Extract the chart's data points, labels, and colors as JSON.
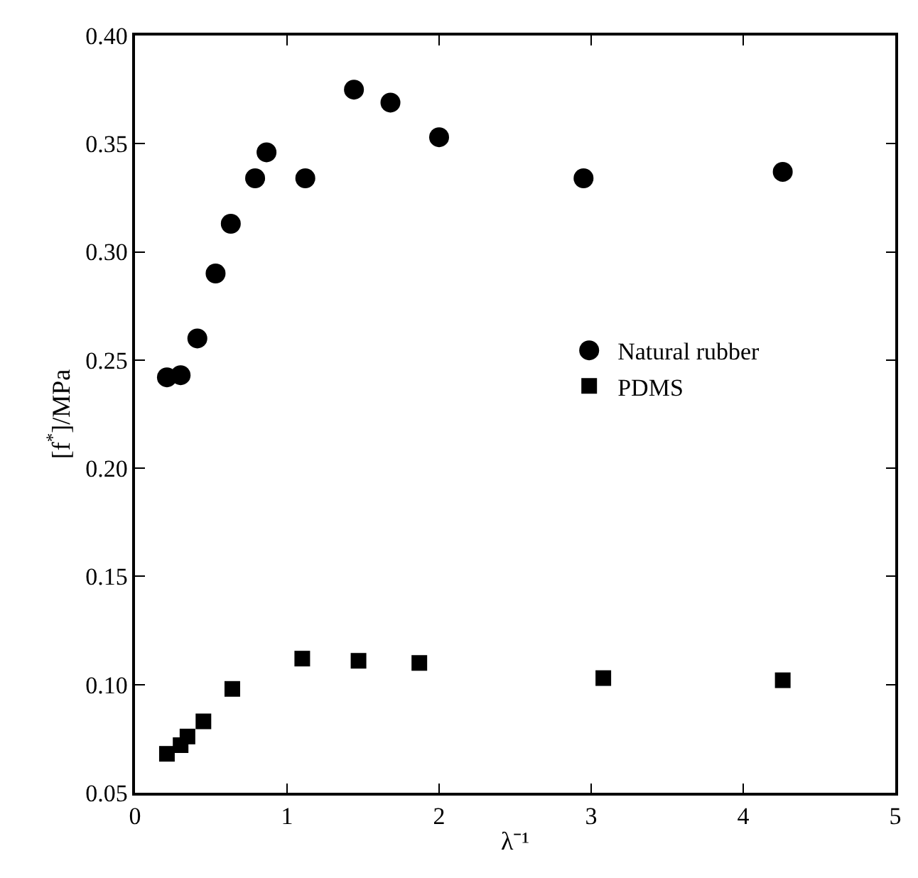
{
  "chart_data": {
    "type": "scatter",
    "xlabel": "λ⁻¹",
    "ylabel": "[f$^{*}$]/MPa",
    "xlim": [
      0,
      5
    ],
    "xticks": [
      0,
      1,
      2,
      3,
      4,
      5
    ],
    "ylim": [
      0.05,
      0.4
    ],
    "yticks": [
      0.05,
      {
        "value": 0.1,
        "label": "0.10"
      },
      0.15,
      {
        "value": 0.2,
        "label": "0.20"
      },
      0.25,
      {
        "value": 0.3,
        "label": "0.30"
      },
      0.35,
      {
        "value": 0.4,
        "label": "0.40"
      }
    ],
    "legend": "right",
    "series": [
      {
        "name": "Natural rubber",
        "color": "#000000",
        "marker": "circle",
        "x": [
          0.21,
          0.3,
          0.41,
          0.53,
          0.63,
          0.79,
          0.865,
          1.12,
          1.44,
          1.68,
          2.0,
          2.95,
          4.26
        ],
        "values": [
          0.242,
          0.243,
          0.26,
          0.29,
          0.313,
          0.334,
          0.346,
          0.334,
          0.375,
          0.369,
          0.353,
          0.334,
          0.337
        ]
      },
      {
        "name": "PDMS",
        "color": "#000000",
        "marker": "square",
        "x": [
          0.21,
          0.3,
          0.345,
          0.45,
          0.64,
          1.1,
          1.47,
          1.87,
          3.08,
          4.26
        ],
        "values": [
          0.068,
          0.072,
          0.076,
          0.083,
          0.098,
          0.112,
          0.111,
          0.11,
          0.103,
          0.102
        ]
      }
    ]
  }
}
